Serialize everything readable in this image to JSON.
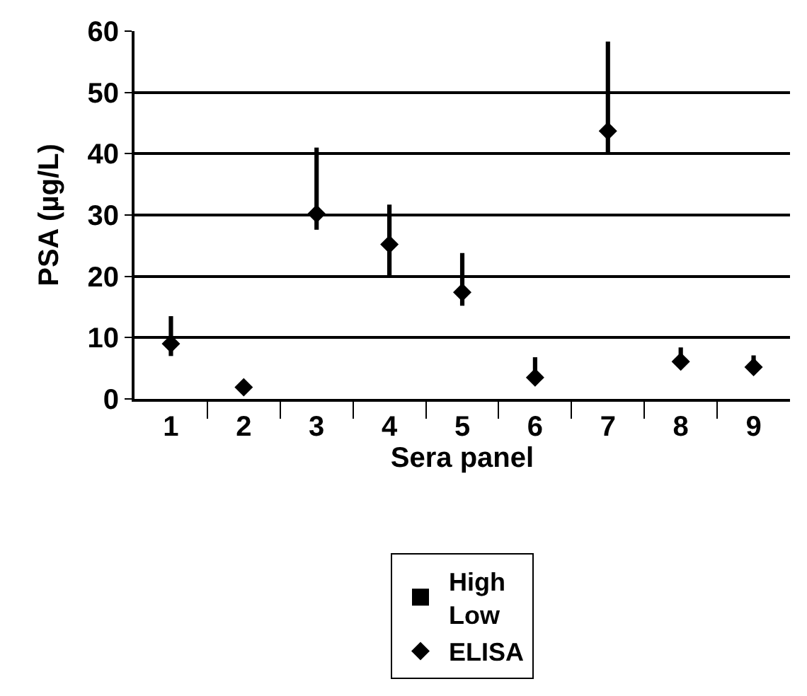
{
  "chart_data": {
    "type": "scatter",
    "xlabel": "Sera panel",
    "ylabel": "PSA (µg/L)",
    "categories": [
      "1",
      "2",
      "3",
      "4",
      "5",
      "6",
      "7",
      "8",
      "9"
    ],
    "series": [
      {
        "name": "High\nLow",
        "type": "bar",
        "color": "#000000",
        "base": [
          7.0,
          null,
          27.6,
          20.1,
          15.2,
          3.0,
          40.0,
          6.0,
          5.0
        ],
        "values": [
          6.5,
          null,
          13.4,
          11.6,
          8.6,
          3.8,
          18.3,
          2.4,
          2.1
        ]
      },
      {
        "name": "ELISA",
        "color": "#000000",
        "marker": "diamond",
        "values": [
          9.0,
          1.9,
          30.2,
          25.2,
          17.4,
          3.5,
          43.7,
          6.1,
          5.2
        ]
      }
    ],
    "ylim": [
      0,
      60
    ],
    "yticks": [
      0,
      10,
      20,
      30,
      40,
      50,
      60
    ],
    "grid": "y",
    "legend": "bottom"
  }
}
